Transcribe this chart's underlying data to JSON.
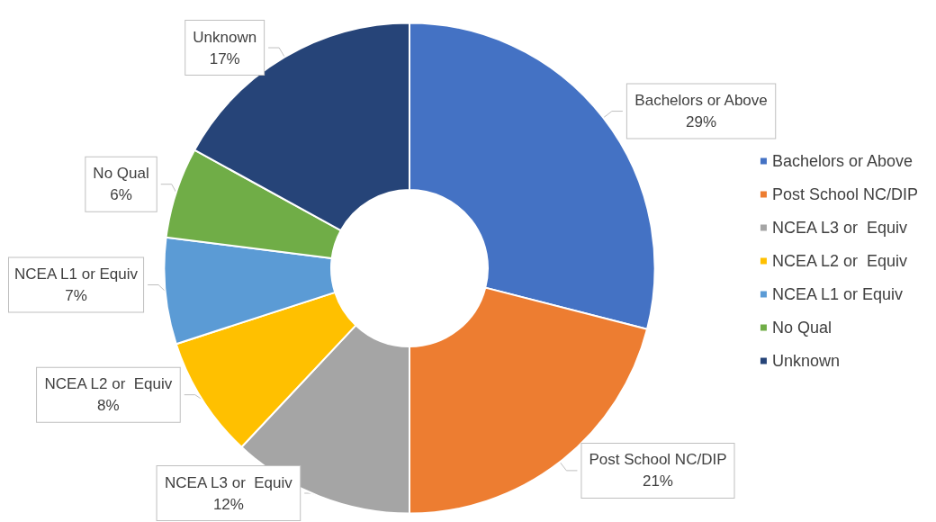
{
  "chart_data": {
    "type": "donut",
    "categories": [
      "Bachelors or Above",
      "Post School NC/DIP",
      "NCEA L3 or  Equiv",
      "NCEA L2 or  Equiv",
      "NCEA L1 or Equiv",
      "No Qual",
      "Unknown"
    ],
    "values": [
      29,
      21,
      12,
      8,
      7,
      6,
      17
    ],
    "colors": [
      "#4472c4",
      "#ed7d31",
      "#a5a5a5",
      "#ffc000",
      "#5b9bd5",
      "#70ad47",
      "#264478"
    ],
    "value_labels": [
      "29%",
      "21%",
      "12%",
      "8%",
      "7%",
      "6%",
      "17%"
    ],
    "legend": "right"
  }
}
